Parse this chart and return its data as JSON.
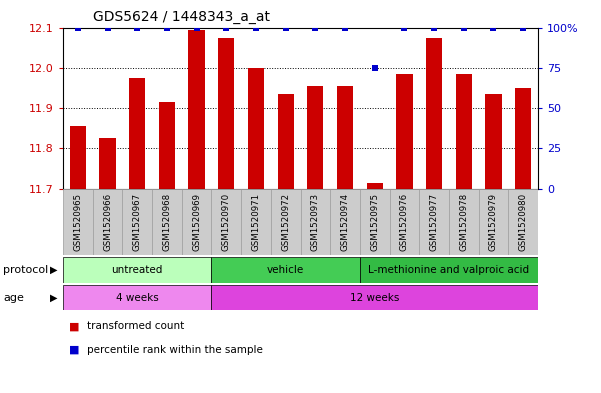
{
  "title": "GDS5624 / 1448343_a_at",
  "samples": [
    "GSM1520965",
    "GSM1520966",
    "GSM1520967",
    "GSM1520968",
    "GSM1520969",
    "GSM1520970",
    "GSM1520971",
    "GSM1520972",
    "GSM1520973",
    "GSM1520974",
    "GSM1520975",
    "GSM1520976",
    "GSM1520977",
    "GSM1520978",
    "GSM1520979",
    "GSM1520980"
  ],
  "bar_values": [
    11.855,
    11.825,
    11.975,
    11.915,
    12.095,
    12.075,
    12.0,
    11.935,
    11.955,
    11.955,
    11.715,
    11.985,
    12.075,
    11.985,
    11.935,
    11.95
  ],
  "percentile_values": [
    100,
    100,
    100,
    100,
    100,
    100,
    100,
    100,
    100,
    100,
    75,
    100,
    100,
    100,
    100,
    100
  ],
  "bar_color": "#cc0000",
  "dot_color": "#0000cc",
  "ylim_left": [
    11.7,
    12.1
  ],
  "ylim_right": [
    0,
    100
  ],
  "yticks_left": [
    11.7,
    11.8,
    11.9,
    12.0,
    12.1
  ],
  "yticks_right": [
    0,
    25,
    50,
    75,
    100
  ],
  "grid_ticks": [
    11.8,
    11.9,
    12.0
  ],
  "protocol_groups": [
    {
      "label": "untreated",
      "start": 0,
      "end": 4,
      "color": "#bbffbb"
    },
    {
      "label": "vehicle",
      "start": 5,
      "end": 9,
      "color": "#44cc55"
    },
    {
      "label": "L-methionine and valproic acid",
      "start": 10,
      "end": 15,
      "color": "#33bb44"
    }
  ],
  "age_groups": [
    {
      "label": "4 weeks",
      "start": 0,
      "end": 4,
      "color": "#ee88ee"
    },
    {
      "label": "12 weeks",
      "start": 5,
      "end": 15,
      "color": "#dd44dd"
    }
  ],
  "protocol_label": "protocol",
  "age_label": "age",
  "legend_bar_label": "transformed count",
  "legend_dot_label": "percentile rank within the sample",
  "tick_color_left": "#cc0000",
  "tick_color_right": "#0000cc",
  "label_bg_color": "#cccccc",
  "label_border_color": "#999999"
}
